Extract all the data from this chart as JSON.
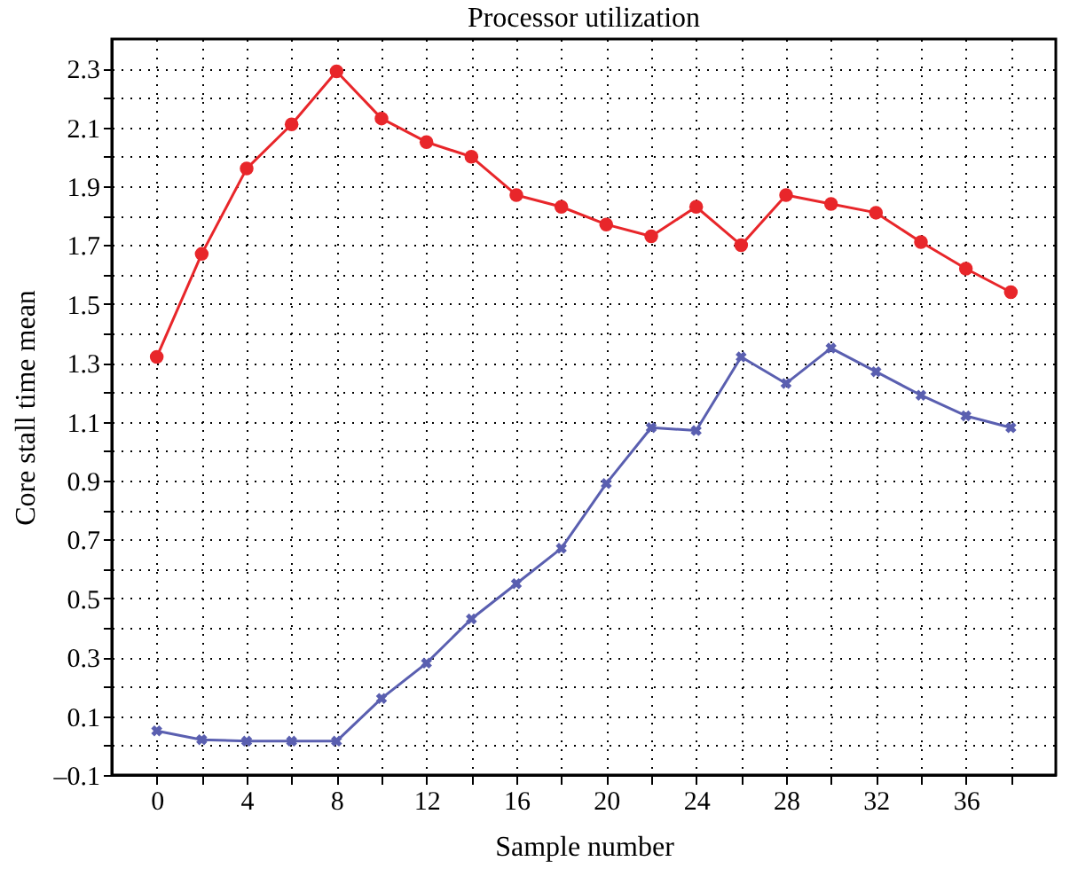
{
  "chart_data": {
    "type": "line",
    "title": "Processor utilization",
    "xlabel": "Sample number",
    "ylabel": "Core stall time mean",
    "x": [
      0,
      2,
      4,
      6,
      8,
      10,
      12,
      14,
      16,
      18,
      20,
      22,
      24,
      26,
      28,
      30,
      32,
      34,
      36,
      38
    ],
    "series": [
      {
        "color": "#e8262a",
        "marker": "circle",
        "values": [
          1.32,
          1.67,
          1.96,
          2.11,
          2.29,
          2.13,
          2.05,
          2.0,
          1.87,
          1.83,
          1.77,
          1.73,
          1.83,
          1.7,
          1.87,
          1.84,
          1.81,
          1.71,
          1.62,
          1.54
        ]
      },
      {
        "color": "#5a5fb0",
        "marker": "cross",
        "values": [
          0.05,
          0.02,
          0.015,
          0.015,
          0.015,
          0.16,
          0.28,
          0.43,
          0.55,
          0.67,
          0.89,
          1.08,
          1.07,
          1.32,
          1.23,
          1.35,
          1.27,
          1.19,
          1.12,
          1.08
        ]
      }
    ],
    "xlim": [
      -2,
      40
    ],
    "xticks": [
      0,
      {
        "value": 2,
        "label": null
      },
      4,
      {
        "value": 6,
        "label": null
      },
      8,
      {
        "value": 10,
        "label": null
      },
      12,
      {
        "value": 14,
        "label": null
      },
      16,
      {
        "value": 18,
        "label": null
      },
      20,
      {
        "value": 22,
        "label": null
      },
      24,
      {
        "value": 26,
        "label": null
      },
      28,
      {
        "value": 30,
        "label": null
      },
      32,
      {
        "value": 34,
        "label": null
      },
      36,
      {
        "value": 38,
        "label": null
      }
    ],
    "ylim": [
      -0.1,
      2.4
    ],
    "yticks": [
      {
        "value": -0.1,
        "label": "–0.1"
      },
      {
        "value": 0.0,
        "label": null
      },
      0.1,
      {
        "value": 0.2,
        "label": null
      },
      0.3,
      {
        "value": 0.4,
        "label": null
      },
      0.5,
      {
        "value": 0.6,
        "label": null
      },
      0.7,
      {
        "value": 0.8,
        "label": null
      },
      0.9,
      {
        "value": 1.0,
        "label": null
      },
      1.1,
      {
        "value": 1.2,
        "label": null
      },
      1.3,
      {
        "value": 1.4,
        "label": null
      },
      1.5,
      {
        "value": 1.6,
        "label": null
      },
      1.7,
      {
        "value": 1.8,
        "label": null
      },
      1.9,
      {
        "value": 2.0,
        "label": null
      },
      2.1,
      {
        "value": 2.2,
        "label": null
      },
      2.3
    ],
    "grid": true,
    "legend": false,
    "line_style": "solid"
  }
}
